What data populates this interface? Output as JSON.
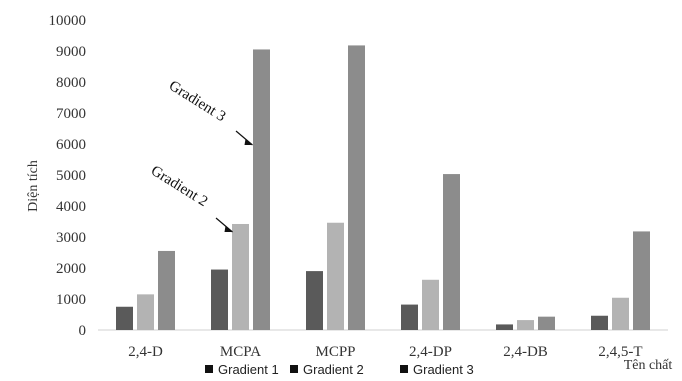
{
  "chart_data": {
    "type": "bar",
    "title": "",
    "xlabel": "Tên chất",
    "ylabel": "Diện tích",
    "ylim": [
      0,
      10000
    ],
    "yticks": [
      0,
      1000,
      2000,
      3000,
      4000,
      5000,
      6000,
      7000,
      8000,
      9000,
      10000
    ],
    "grid": false,
    "legend_position": "bottom",
    "categories": [
      "2,4-D",
      "MCPA",
      "MCPP",
      "2,4-DP",
      "2,4-DB",
      "2,4,5-T"
    ],
    "series": [
      {
        "name": "Gradient 1",
        "color": "#5a5a5a",
        "values": [
          750,
          1950,
          1900,
          820,
          180,
          460
        ]
      },
      {
        "name": "Gradient 2",
        "color": "#b3b3b3",
        "values": [
          1150,
          3420,
          3460,
          1620,
          320,
          1040
        ]
      },
      {
        "name": "Gradient 3",
        "color": "#8c8c8c",
        "values": [
          2550,
          9050,
          9180,
          5030,
          430,
          3180
        ]
      }
    ],
    "annotations": [
      {
        "text": "Gradient 3",
        "arrow_to": {
          "category": "MCPA",
          "series": "Gradient 3"
        }
      },
      {
        "text": "Gradient 2",
        "arrow_to": {
          "category": "MCPA",
          "series": "Gradient 2"
        }
      }
    ]
  }
}
